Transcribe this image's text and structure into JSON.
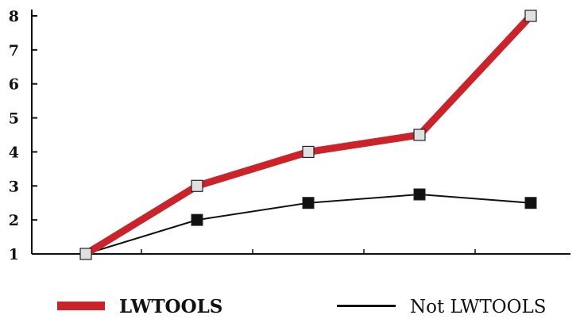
{
  "chart_data": {
    "type": "line",
    "x": [
      1,
      2,
      3,
      4,
      5
    ],
    "ylim": [
      1,
      8
    ],
    "yticks": [
      1,
      2,
      3,
      4,
      5,
      6,
      7,
      8
    ],
    "series": [
      {
        "name": "LWTOOLS",
        "values": [
          1,
          3,
          4,
          4.5,
          8
        ],
        "color": "#cc2229",
        "marker_fill": "#e0e0e0"
      },
      {
        "name": "Not LWTOOLS",
        "values": [
          1,
          2,
          2.5,
          2.75,
          2.5
        ],
        "color": "#111111",
        "marker_fill": "#111111"
      }
    ],
    "legend_position": "bottom",
    "grid": false
  }
}
